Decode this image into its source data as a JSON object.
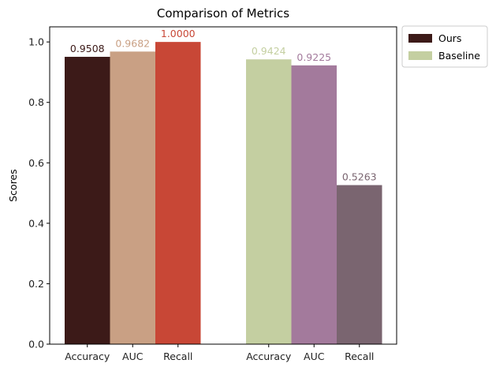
{
  "chart_data": {
    "type": "bar",
    "title": "Comparison of Metrics",
    "xlabel": "",
    "ylabel": "Scores",
    "ylim": [
      0,
      1.05
    ],
    "yticks": [
      "0.0",
      "0.2",
      "0.4",
      "0.6",
      "0.8",
      "1.0"
    ],
    "grid": false,
    "legend_position": "outside top-right",
    "groups": [
      {
        "name": "Ours",
        "legend_color": "#3c1a18",
        "bars": [
          {
            "category": "Accuracy",
            "value": 0.9508,
            "label": "0.9508",
            "color": "#3c1a18"
          },
          {
            "category": "AUC",
            "value": 0.9682,
            "label": "0.9682",
            "color": "#c9a084"
          },
          {
            "category": "Recall",
            "value": 1.0,
            "label": "1.0000",
            "color": "#c84736"
          }
        ]
      },
      {
        "name": "Baseline",
        "legend_color": "#c4cfa1",
        "bars": [
          {
            "category": "Accuracy",
            "value": 0.9424,
            "label": "0.9424",
            "color": "#c4cfa1"
          },
          {
            "category": "AUC",
            "value": 0.9225,
            "label": "0.9225",
            "color": "#a37a9c"
          },
          {
            "category": "Recall",
            "value": 0.5263,
            "label": "0.5263",
            "color": "#7a6570"
          }
        ]
      }
    ]
  }
}
